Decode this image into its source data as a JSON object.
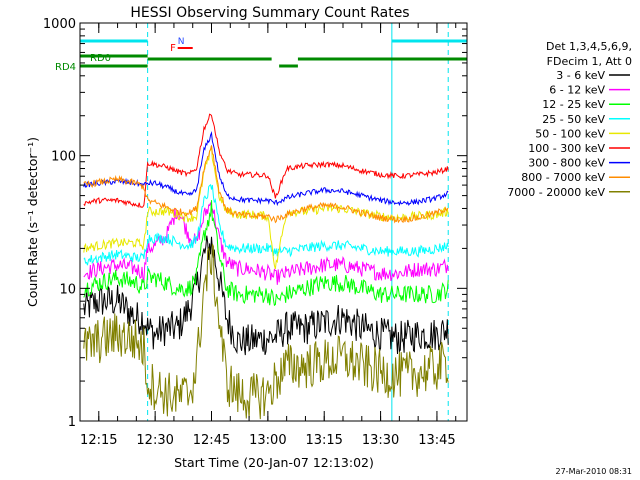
{
  "colors": {
    "background": "#ffffff",
    "axis": "#000000",
    "cyan": "#00e5ee",
    "green_bar": "#008a00",
    "red_flag": "#ff0000"
  },
  "chart_data": {
    "type": "line",
    "title": "HESSI Observing Summary Count Rates",
    "xlabel": "Start Time (20-Jan-07 12:13:02)",
    "ylabel": "Count Rate (s⁻¹ detector⁻¹)",
    "y_scale": "log",
    "xlim": [
      "12:10",
      "13:53"
    ],
    "ylim": [
      1,
      1000
    ],
    "x_ticks": [
      "12:15",
      "12:30",
      "12:45",
      "13:00",
      "13:15",
      "13:30",
      "13:45"
    ],
    "y_ticks": [
      1,
      10,
      100,
      1000
    ],
    "y_tick_labels": [
      "1",
      "10",
      "100",
      "1000"
    ],
    "grid": false,
    "legend_position": "right",
    "legend_header": [
      "Det 1,3,4,5,6,9,",
      "FDecim 1, Att 0"
    ],
    "timestamp": "27-Mar-2010 08:31",
    "flags": [
      {
        "label": "RD0",
        "segments": [
          [
            "12:10",
            "12:28"
          ]
        ]
      },
      {
        "label": "RD4",
        "segments": [
          [
            "12:10",
            "12:28"
          ],
          [
            "12:28",
            "13:01"
          ],
          [
            "13:03",
            "13:08"
          ],
          [
            "13:08",
            "13:53"
          ]
        ]
      },
      {
        "label": "N",
        "segments": []
      },
      {
        "label": "F",
        "segments": [
          [
            "12:36",
            "12:40"
          ]
        ]
      }
    ],
    "saa_intervals": [
      [
        "12:10",
        "12:28"
      ],
      [
        "13:33",
        "13:53"
      ]
    ],
    "vertical_markers": [
      "12:28",
      "13:33",
      "13:48"
    ],
    "series": [
      {
        "name": "3 - 6 keV",
        "color": "#000000",
        "x": [
          "12:11",
          "12:15",
          "12:20",
          "12:25",
          "12:27",
          "12:28",
          "12:30",
          "12:33",
          "12:36",
          "12:39",
          "12:41",
          "12:43",
          "12:45",
          "12:47",
          "12:49",
          "12:52",
          "12:55",
          "13:00",
          "13:02",
          "13:05",
          "13:10",
          "13:15",
          "13:20",
          "13:25",
          "13:30",
          "13:35",
          "13:40",
          "13:45",
          "13:48"
        ],
        "values": [
          7,
          8,
          8,
          6,
          6,
          5,
          4.5,
          5,
          5,
          7,
          10,
          18,
          22,
          12,
          6,
          4,
          4,
          4.2,
          4.3,
          5,
          5,
          5.5,
          6,
          5,
          4.5,
          4.2,
          4.5,
          4.5,
          5
        ]
      },
      {
        "name": "6 - 12 keV",
        "color": "#ff00ff",
        "x": [
          "12:11",
          "12:15",
          "12:20",
          "12:25",
          "12:27",
          "12:28",
          "12:30",
          "12:33",
          "12:36",
          "12:39",
          "12:41",
          "12:43",
          "12:45",
          "12:47",
          "12:49",
          "12:52",
          "12:55",
          "13:00",
          "13:02",
          "13:05",
          "13:10",
          "13:15",
          "13:20",
          "13:25",
          "13:30",
          "13:35",
          "13:40",
          "13:45",
          "13:48"
        ],
        "values": [
          13,
          14,
          15,
          14,
          13,
          20,
          21,
          25,
          40,
          25,
          22,
          35,
          45,
          24,
          16,
          14,
          14,
          13,
          12,
          13,
          14,
          15,
          15,
          14,
          13,
          13,
          14,
          14,
          15
        ]
      },
      {
        "name": "12 - 25 keV",
        "color": "#00ff00",
        "x": [
          "12:11",
          "12:15",
          "12:20",
          "12:25",
          "12:27",
          "12:28",
          "12:30",
          "12:33",
          "12:36",
          "12:39",
          "12:41",
          "12:43",
          "12:45",
          "12:47",
          "12:49",
          "12:52",
          "12:55",
          "13:00",
          "13:02",
          "13:05",
          "13:10",
          "13:15",
          "13:20",
          "13:25",
          "13:30",
          "13:35",
          "13:40",
          "13:45",
          "13:48"
        ],
        "values": [
          10,
          11,
          12,
          11,
          10,
          12,
          12,
          11,
          10,
          10,
          12,
          25,
          40,
          18,
          10,
          9,
          9,
          9,
          8,
          9,
          10,
          11,
          11,
          10,
          9,
          9,
          9,
          9,
          10
        ]
      },
      {
        "name": "25 - 50 keV",
        "color": "#00ffff",
        "x": [
          "12:11",
          "12:15",
          "12:20",
          "12:25",
          "12:27",
          "12:28",
          "12:30",
          "12:33",
          "12:36",
          "12:39",
          "12:41",
          "12:43",
          "12:45",
          "12:47",
          "12:49",
          "12:52",
          "12:55",
          "13:00",
          "13:02",
          "13:05",
          "13:10",
          "13:15",
          "13:20",
          "13:25",
          "13:30",
          "13:35",
          "13:40",
          "13:45",
          "13:48"
        ],
        "values": [
          16,
          17,
          18,
          17,
          17,
          24,
          24,
          24,
          22,
          21,
          23,
          45,
          60,
          30,
          21,
          20,
          20,
          20,
          19,
          19,
          20,
          21,
          21,
          20,
          19,
          19,
          19,
          20,
          21
        ]
      },
      {
        "name": "50 - 100 keV",
        "color": "#e8e800",
        "x": [
          "12:11",
          "12:15",
          "12:20",
          "12:25",
          "12:27",
          "12:28",
          "12:30",
          "12:33",
          "12:36",
          "12:39",
          "12:41",
          "12:43",
          "12:45",
          "12:47",
          "12:49",
          "12:52",
          "12:55",
          "13:00",
          "13:02",
          "13:05",
          "13:10",
          "13:15",
          "13:20",
          "13:25",
          "13:30",
          "13:35",
          "13:40",
          "13:45",
          "13:48"
        ],
        "values": [
          20,
          21,
          22,
          22,
          21,
          38,
          38,
          38,
          36,
          34,
          35,
          75,
          110,
          50,
          38,
          36,
          36,
          35,
          14,
          38,
          38,
          40,
          40,
          37,
          35,
          34,
          35,
          36,
          38
        ]
      },
      {
        "name": "100 - 300 keV",
        "color": "#ff0000",
        "x": [
          "12:11",
          "12:15",
          "12:20",
          "12:25",
          "12:27",
          "12:28",
          "12:30",
          "12:33",
          "12:36",
          "12:39",
          "12:41",
          "12:43",
          "12:45",
          "12:47",
          "12:49",
          "12:52",
          "12:55",
          "13:00",
          "13:02",
          "13:05",
          "13:10",
          "13:15",
          "13:20",
          "13:25",
          "13:30",
          "13:35",
          "13:40",
          "13:45",
          "13:48"
        ],
        "values": [
          44,
          46,
          46,
          43,
          42,
          88,
          86,
          82,
          76,
          72,
          80,
          160,
          210,
          110,
          78,
          72,
          72,
          71,
          48,
          80,
          84,
          86,
          84,
          77,
          72,
          70,
          72,
          75,
          80
        ]
      },
      {
        "name": "300 - 800 keV",
        "color": "#0000ff",
        "x": [
          "12:11",
          "12:15",
          "12:20",
          "12:25",
          "12:27",
          "12:28",
          "12:30",
          "12:33",
          "12:36",
          "12:39",
          "12:41",
          "12:43",
          "12:45",
          "12:47",
          "12:49",
          "12:52",
          "12:55",
          "13:00",
          "13:02",
          "13:05",
          "13:10",
          "13:15",
          "13:20",
          "13:25",
          "13:30",
          "13:35",
          "13:40",
          "13:45",
          "13:48"
        ],
        "values": [
          60,
          62,
          64,
          62,
          60,
          62,
          62,
          58,
          53,
          50,
          55,
          110,
          145,
          72,
          50,
          47,
          46,
          46,
          44,
          48,
          52,
          55,
          54,
          50,
          46,
          44,
          45,
          48,
          52
        ]
      },
      {
        "name": "800 - 7000 keV",
        "color": "#ff8c00",
        "x": [
          "12:11",
          "12:15",
          "12:20",
          "12:25",
          "12:27",
          "12:28",
          "12:30",
          "12:33",
          "12:36",
          "12:39",
          "12:41",
          "12:43",
          "12:45",
          "12:47",
          "12:49",
          "12:52",
          "12:55",
          "13:00",
          "13:02",
          "13:05",
          "13:10",
          "13:15",
          "13:20",
          "13:25",
          "13:30",
          "13:35",
          "13:40",
          "13:45",
          "13:48"
        ],
        "values": [
          60,
          63,
          66,
          62,
          58,
          46,
          44,
          41,
          38,
          37,
          40,
          80,
          120,
          55,
          39,
          36,
          35,
          35,
          33,
          36,
          40,
          42,
          41,
          37,
          34,
          33,
          34,
          37,
          41
        ]
      },
      {
        "name": "7000 - 20000 keV",
        "color": "#808000",
        "x": [
          "12:11",
          "12:15",
          "12:20",
          "12:25",
          "12:27",
          "12:28",
          "12:30",
          "12:33",
          "12:36",
          "12:39",
          "12:41",
          "12:43",
          "12:45",
          "12:47",
          "12:49",
          "12:52",
          "12:55",
          "13:00",
          "13:02",
          "13:05",
          "13:10",
          "13:15",
          "13:20",
          "13:25",
          "13:30",
          "13:35",
          "13:40",
          "13:45",
          "13:48"
        ],
        "values": [
          3.5,
          4,
          4.5,
          4,
          3.5,
          2,
          1.8,
          1.6,
          1.5,
          1.6,
          2.5,
          10,
          18,
          6,
          2,
          1.6,
          1.5,
          1.6,
          2,
          2.6,
          2.6,
          2.8,
          3,
          2.6,
          2.3,
          2.2,
          2.3,
          2.5,
          2.8
        ]
      }
    ]
  }
}
